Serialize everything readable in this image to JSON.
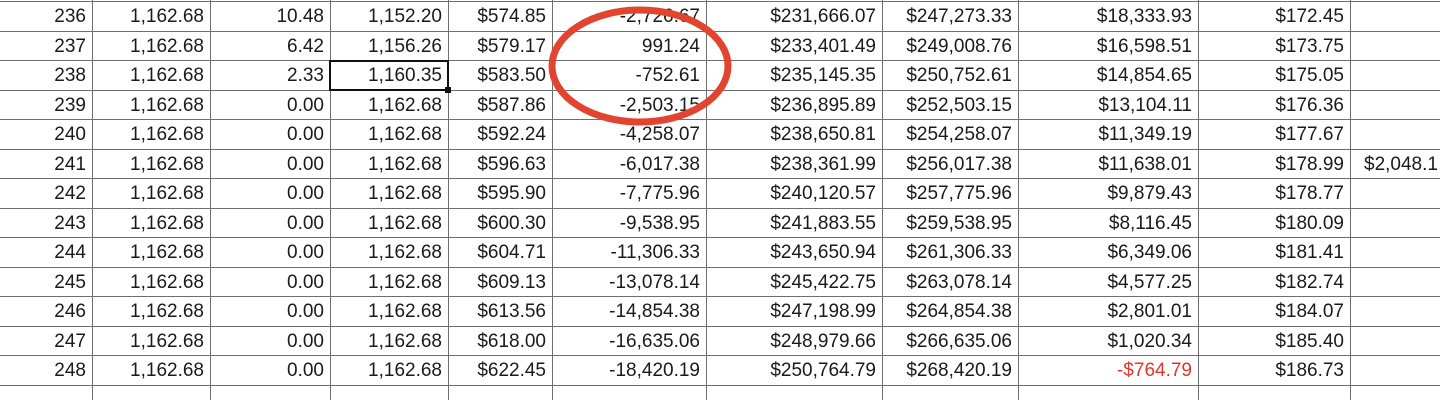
{
  "sheet": {
    "selected": {
      "row": 2,
      "col": 3
    },
    "rows": [
      {
        "cells": [
          "236",
          "1,162.68",
          "10.48",
          "1,152.20",
          "$574.85",
          "-2,726.67",
          "$231,666.07",
          "$247,273.33",
          "$18,333.93",
          "$172.45",
          ""
        ]
      },
      {
        "cells": [
          "237",
          "1,162.68",
          "6.42",
          "1,156.26",
          "$579.17",
          "991.24",
          "$233,401.49",
          "$249,008.76",
          "$16,598.51",
          "$173.75",
          ""
        ]
      },
      {
        "cells": [
          "238",
          "1,162.68",
          "2.33",
          "1,160.35",
          "$583.50",
          "-752.61",
          "$235,145.35",
          "$250,752.61",
          "$14,854.65",
          "$175.05",
          ""
        ]
      },
      {
        "cells": [
          "239",
          "1,162.68",
          "0.00",
          "1,162.68",
          "$587.86",
          "-2,503.15",
          "$236,895.89",
          "$252,503.15",
          "$13,104.11",
          "$176.36",
          ""
        ]
      },
      {
        "cells": [
          "240",
          "1,162.68",
          "0.00",
          "1,162.68",
          "$592.24",
          "-4,258.07",
          "$238,650.81",
          "$254,258.07",
          "$11,349.19",
          "$177.67",
          ""
        ]
      },
      {
        "cells": [
          "241",
          "1,162.68",
          "0.00",
          "1,162.68",
          "$596.63",
          "-6,017.38",
          "$238,361.99",
          "$256,017.38",
          "$11,638.01",
          "$178.99",
          "$2,048.1"
        ]
      },
      {
        "cells": [
          "242",
          "1,162.68",
          "0.00",
          "1,162.68",
          "$595.90",
          "-7,775.96",
          "$240,120.57",
          "$257,775.96",
          "$9,879.43",
          "$178.77",
          ""
        ]
      },
      {
        "cells": [
          "243",
          "1,162.68",
          "0.00",
          "1,162.68",
          "$600.30",
          "-9,538.95",
          "$241,883.55",
          "$259,538.95",
          "$8,116.45",
          "$180.09",
          ""
        ]
      },
      {
        "cells": [
          "244",
          "1,162.68",
          "0.00",
          "1,162.68",
          "$604.71",
          "-11,306.33",
          "$243,650.94",
          "$261,306.33",
          "$6,349.06",
          "$181.41",
          ""
        ]
      },
      {
        "cells": [
          "245",
          "1,162.68",
          "0.00",
          "1,162.68",
          "$609.13",
          "-13,078.14",
          "$245,422.75",
          "$263,078.14",
          "$4,577.25",
          "$182.74",
          ""
        ]
      },
      {
        "cells": [
          "246",
          "1,162.68",
          "0.00",
          "1,162.68",
          "$613.56",
          "-14,854.38",
          "$247,198.99",
          "$264,854.38",
          "$2,801.01",
          "$184.07",
          ""
        ]
      },
      {
        "cells": [
          "247",
          "1,162.68",
          "0.00",
          "1,162.68",
          "$618.00",
          "-16,635.06",
          "$248,979.66",
          "$266,635.06",
          "$1,020.34",
          "$185.40",
          ""
        ]
      },
      {
        "cells": [
          "248",
          "1,162.68",
          "0.00",
          "1,162.68",
          "$622.45",
          "-18,420.19",
          "$250,764.79",
          "$268,420.19",
          "-$764.79",
          "$186.73",
          ""
        ]
      }
    ],
    "negative_cells": [
      {
        "row": 12,
        "col": 8
      }
    ],
    "colors": {
      "grid": "#6e6e6e",
      "text": "#1a1a1a",
      "negative": "#e0372a",
      "annotation": "#e2452f"
    }
  }
}
